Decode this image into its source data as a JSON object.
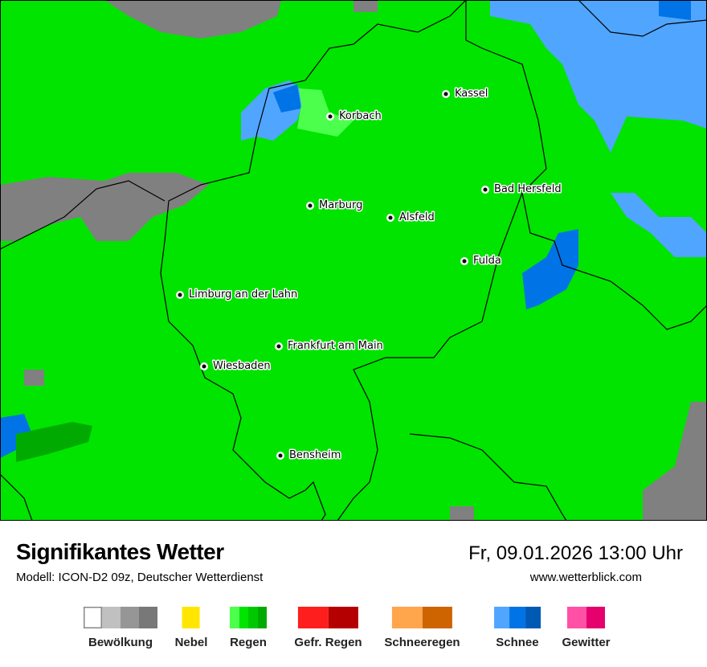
{
  "title": "Signifikantes Wetter",
  "model": "Modell: ICON-D2 09z, Deutscher Wetterdienst",
  "datetime": "Fr, 09.01.2026 13:00 Uhr",
  "website": "www.wetterblick.com",
  "map": {
    "background_color": "#00e400",
    "cities": [
      {
        "name": "Kassel"
      },
      {
        "name": "Korbach"
      },
      {
        "name": "Marburg"
      },
      {
        "name": "Alsfeld"
      },
      {
        "name": "Bad Hersfeld"
      },
      {
        "name": "Fulda"
      },
      {
        "name": "Limburg an der Lahn"
      },
      {
        "name": "Frankfurt am Main"
      },
      {
        "name": "Wiesbaden"
      },
      {
        "name": "Bensheim"
      }
    ]
  },
  "legend": [
    {
      "label": "Bewölkung",
      "colors": [
        "#ffffff",
        "#c0c0c0",
        "#969696",
        "#787878"
      ]
    },
    {
      "label": "Nebel",
      "colors": [
        "#ffe600"
      ]
    },
    {
      "label": "Regen",
      "colors": [
        "#4cff4c",
        "#00e400",
        "#00c800",
        "#00aa00"
      ]
    },
    {
      "label": "Gefr. Regen",
      "colors": [
        "#ff1e1e",
        "#b40000"
      ]
    },
    {
      "label": "Schneeregen",
      "colors": [
        "#ffa54c",
        "#cd6400"
      ]
    },
    {
      "label": "Schnee",
      "colors": [
        "#50a5ff",
        "#0073e6",
        "#005ab4"
      ]
    },
    {
      "label": "Gewitter",
      "colors": [
        "#ff50a5",
        "#e6006e"
      ]
    }
  ]
}
